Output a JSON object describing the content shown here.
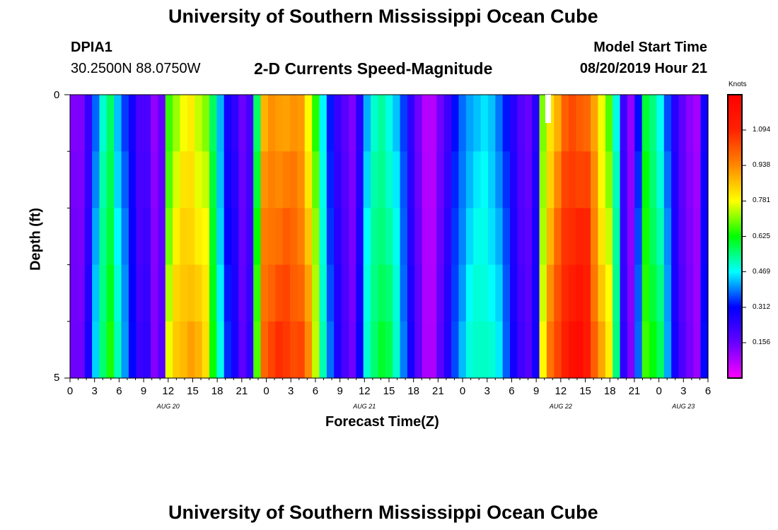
{
  "header": {
    "title": "University of Southern Mississippi Ocean Cube",
    "station_id": "DPIA1",
    "coordinates": "30.2500N 88.0750W",
    "chart_subtitle": "2-D Currents Speed-Magnitude",
    "model_start_label": "Model Start Time",
    "model_start_value": "08/20/2019 Hour 21"
  },
  "footer": {
    "title": "University of Southern Mississippi Ocean Cube"
  },
  "chart_data": {
    "type": "heatmap",
    "title": "2-D Currents Speed-Magnitude",
    "xlabel": "Forecast Time(Z)",
    "ylabel": "Depth (ft)",
    "y_ticks": [
      "0",
      "5"
    ],
    "ylim": [
      0,
      5
    ],
    "x_tick_labels": [
      "0",
      "3",
      "6",
      "9",
      "12",
      "15",
      "18",
      "21",
      "0",
      "3",
      "6",
      "9",
      "12",
      "15",
      "18",
      "21",
      "0",
      "3",
      "6",
      "9",
      "12",
      "15",
      "18",
      "21",
      "0",
      "3",
      "6"
    ],
    "date_labels": [
      "AUG 20",
      "AUG 21",
      "AUG 22",
      "AUG 23"
    ],
    "colorbar": {
      "label": "Knots",
      "ticks": [
        "1.094",
        "0.938",
        "0.781",
        "0.625",
        "0.469",
        "0.312",
        "0.156"
      ],
      "range": [
        0,
        1.25
      ]
    },
    "time_step_hours": 1,
    "depth_levels": 5,
    "speed_knots_profile": [
      0.14,
      0.14,
      0.25,
      0.41,
      0.53,
      0.6,
      0.47,
      0.38,
      0.3,
      0.21,
      0.22,
      0.12,
      0.17,
      0.71,
      0.79,
      0.83,
      0.85,
      0.81,
      0.77,
      0.6,
      0.45,
      0.31,
      0.26,
      0.16,
      0.22,
      0.62,
      0.94,
      0.98,
      0.99,
      0.99,
      0.98,
      0.97,
      0.86,
      0.7,
      0.49,
      0.35,
      0.25,
      0.19,
      0.14,
      0.27,
      0.46,
      0.53,
      0.56,
      0.53,
      0.47,
      0.37,
      0.26,
      0.16,
      0.08,
      0.08,
      0.16,
      0.24,
      0.34,
      0.4,
      0.45,
      0.47,
      0.48,
      0.46,
      0.42,
      0.35,
      0.27,
      0.2,
      0.17,
      0.27,
      0.74,
      0.89,
      0.97,
      1.06,
      1.1,
      1.1,
      1.07,
      0.95,
      0.83,
      0.74,
      0.52,
      0.23,
      0.12,
      0.35,
      0.63,
      0.58,
      0.52,
      0.39,
      0.27,
      0.18,
      0.13,
      0.1,
      0.3
    ]
  }
}
